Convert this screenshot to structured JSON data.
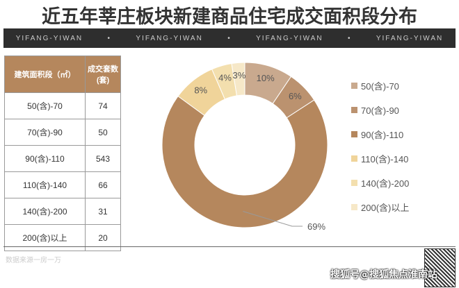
{
  "title": "近五年莘庄板块新建商品住宅成交面积段分布",
  "band": [
    "YIFANG-YIWAN",
    "•",
    "YIFANG-YIWAN",
    "•",
    "YIFANG-YIWAN",
    "•",
    "YIFANG-YIWAN"
  ],
  "table": {
    "headers": [
      "建筑面积段（㎡）",
      "成交套数(套)"
    ],
    "rows": [
      [
        "50(含)-70",
        "74"
      ],
      [
        "70(含)-90",
        "50"
      ],
      [
        "90(含)-110",
        "543"
      ],
      [
        "110(含)-140",
        "66"
      ],
      [
        "140(含)-200",
        "31"
      ],
      [
        "200(含)以上",
        "20"
      ]
    ]
  },
  "chart_data": {
    "type": "pie",
    "donut": true,
    "categories": [
      "50(含)-70",
      "70(含)-90",
      "90(含)-110",
      "110(含)-140",
      "140(含)-200",
      "200(含)以上"
    ],
    "values": [
      74,
      50,
      543,
      66,
      31,
      20
    ],
    "labels": [
      "10%",
      "6%",
      "69%",
      "8%",
      "4%",
      "3%"
    ],
    "colors": [
      "#c9a98e",
      "#bb926f",
      "#b5875d",
      "#f0d49a",
      "#f3dfae",
      "#f6e8c8"
    ],
    "legend": "right"
  },
  "source": "数据来源一房一万",
  "watermark": "搜狐号@搜狐焦点淮南站"
}
